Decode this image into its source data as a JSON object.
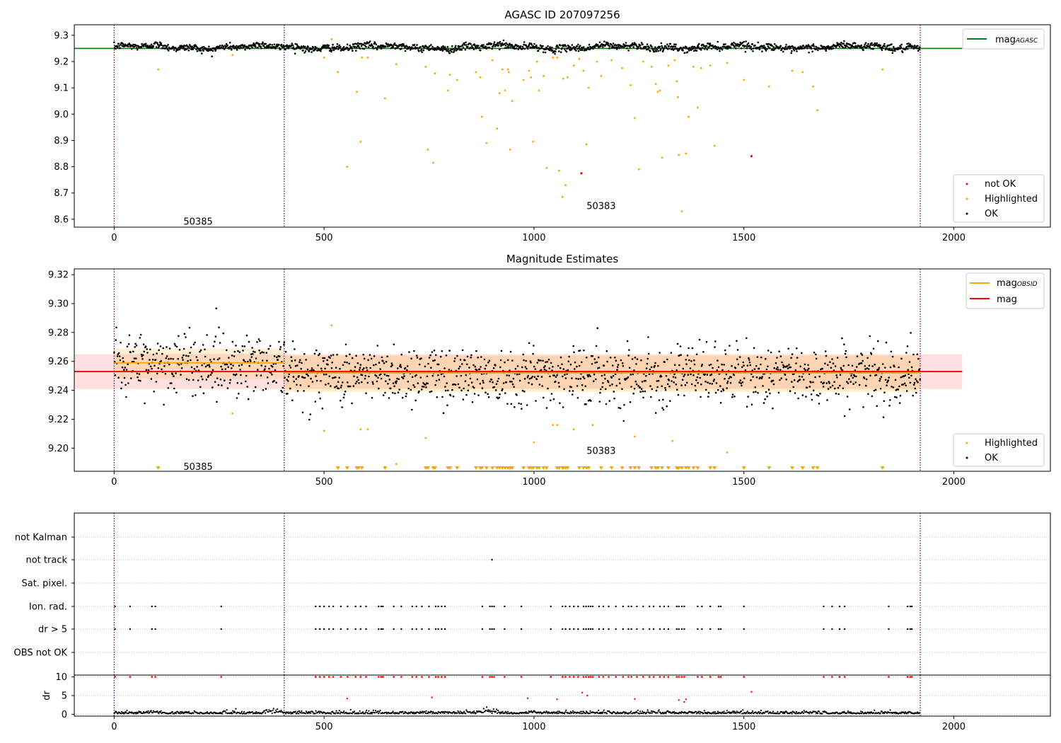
{
  "colors": {
    "ok": "#000000",
    "highlighted": "#ffa500",
    "not_ok": "#ff0000",
    "agasc": "#008000",
    "obsid": "#ffa500",
    "mag": "#ff0000",
    "obs_bound": "#800080"
  },
  "chart_data": [
    {
      "type": "scatter",
      "title": "AGASC ID 207097256",
      "xlim": [
        -95,
        2230
      ],
      "ylim": [
        8.57,
        9.34
      ],
      "xticks": [
        0,
        500,
        1000,
        1500,
        2000
      ],
      "yticks": [
        8.6,
        8.7,
        8.8,
        8.9,
        9.0,
        9.1,
        9.2,
        9.3
      ],
      "obs_boundaries": [
        0,
        405,
        1920
      ],
      "obsid_labels": [
        {
          "text": "50385",
          "x": 200,
          "y": 8.59
        },
        {
          "text": "50383",
          "x": 1160,
          "y": 8.65
        }
      ],
      "reference_lines": [
        {
          "name": "mag_AGASC",
          "label_main": "mag",
          "label_sub": "AGASC",
          "y": 9.25,
          "x_range": [
            -95,
            2020
          ],
          "color": "#008000"
        }
      ],
      "ok_band": {
        "center": 9.255,
        "spread": 0.012,
        "x_range": [
          0,
          1920
        ]
      },
      "highlighted_points": [
        [
          105,
          9.17
        ],
        [
          282,
          9.225
        ],
        [
          500,
          9.215
        ],
        [
          518,
          9.285
        ],
        [
          533,
          9.16
        ],
        [
          555,
          8.8
        ],
        [
          578,
          9.085
        ],
        [
          587,
          8.895
        ],
        [
          590,
          9.215
        ],
        [
          604,
          9.215
        ],
        [
          645,
          9.06
        ],
        [
          672,
          9.19
        ],
        [
          742,
          9.18
        ],
        [
          747,
          8.865
        ],
        [
          760,
          8.815
        ],
        [
          764,
          9.155
        ],
        [
          795,
          9.09
        ],
        [
          800,
          9.15
        ],
        [
          817,
          9.13
        ],
        [
          862,
          9.16
        ],
        [
          872,
          9.14
        ],
        [
          876,
          8.99
        ],
        [
          887,
          8.89
        ],
        [
          901,
          9.205
        ],
        [
          912,
          8.945
        ],
        [
          918,
          9.08
        ],
        [
          925,
          9.17
        ],
        [
          931,
          9.09
        ],
        [
          938,
          9.17
        ],
        [
          940,
          9.16
        ],
        [
          943,
          8.865
        ],
        [
          948,
          9.05
        ],
        [
          975,
          9.13
        ],
        [
          988,
          9.165
        ],
        [
          993,
          9.14
        ],
        [
          998,
          8.895
        ],
        [
          1007,
          9.2
        ],
        [
          1012,
          9.09
        ],
        [
          1023,
          9.145
        ],
        [
          1030,
          8.795
        ],
        [
          1045,
          9.215
        ],
        [
          1055,
          9.215
        ],
        [
          1060,
          8.785
        ],
        [
          1068,
          8.685
        ],
        [
          1070,
          9.135
        ],
        [
          1075,
          8.73
        ],
        [
          1080,
          9.14
        ],
        [
          1095,
          9.185
        ],
        [
          1108,
          9.21
        ],
        [
          1118,
          9.165
        ],
        [
          1125,
          8.885
        ],
        [
          1130,
          9.1
        ],
        [
          1150,
          9.2
        ],
        [
          1160,
          9.145
        ],
        [
          1185,
          9.205
        ],
        [
          1210,
          9.175
        ],
        [
          1230,
          9.11
        ],
        [
          1240,
          8.985
        ],
        [
          1250,
          8.79
        ],
        [
          1260,
          9.2
        ],
        [
          1280,
          9.18
        ],
        [
          1290,
          9.115
        ],
        [
          1295,
          9.085
        ],
        [
          1300,
          9.09
        ],
        [
          1305,
          8.835
        ],
        [
          1320,
          9.185
        ],
        [
          1335,
          9.205
        ],
        [
          1340,
          9.125
        ],
        [
          1343,
          9.065
        ],
        [
          1345,
          8.845
        ],
        [
          1352,
          8.63
        ],
        [
          1362,
          8.85
        ],
        [
          1368,
          8.99
        ],
        [
          1380,
          9.18
        ],
        [
          1390,
          9.025
        ],
        [
          1398,
          9.175
        ],
        [
          1420,
          9.185
        ],
        [
          1430,
          8.88
        ],
        [
          1460,
          9.195
        ],
        [
          1500,
          9.13
        ],
        [
          1560,
          9.105
        ],
        [
          1615,
          9.165
        ],
        [
          1640,
          9.16
        ],
        [
          1665,
          9.105
        ],
        [
          1675,
          9.015
        ],
        [
          1830,
          9.17
        ]
      ],
      "not_ok_points": [
        [
          1113,
          8.775
        ],
        [
          1518,
          8.84
        ]
      ],
      "legends": [
        {
          "entries": [
            {
              "label": "mag",
              "sub": "AGASC",
              "kind": "line",
              "color": "#008000"
            }
          ]
        },
        {
          "entries": [
            {
              "label": "not OK",
              "kind": "point",
              "color": "#ff0000"
            },
            {
              "label": "Highlighted",
              "kind": "point",
              "color": "#ffa500"
            },
            {
              "label": "OK",
              "kind": "point",
              "color": "#000000"
            }
          ]
        }
      ]
    },
    {
      "type": "scatter",
      "title": "Magnitude Estimates",
      "xlim": [
        -95,
        2230
      ],
      "ylim": [
        9.184,
        9.324
      ],
      "xticks": [
        0,
        500,
        1000,
        1500,
        2000
      ],
      "yticks": [
        9.2,
        9.22,
        9.24,
        9.26,
        9.28,
        9.3,
        9.32
      ],
      "obs_boundaries": [
        0,
        405,
        1920
      ],
      "obsid_labels": [
        {
          "text": "50385",
          "x": 200,
          "y": 9.187
        },
        {
          "text": "50383",
          "x": 1160,
          "y": 9.198
        }
      ],
      "bands": [
        {
          "x_range": [
            -95,
            2020
          ],
          "y_range": [
            9.241,
            9.265
          ],
          "color": "#ff0000",
          "opacity": 0.12
        },
        {
          "x_range": [
            0,
            405
          ],
          "y_range": [
            9.248,
            9.269
          ],
          "color": "#ffa500",
          "opacity": 0.16
        },
        {
          "x_range": [
            405,
            1920
          ],
          "y_range": [
            9.239,
            9.264
          ],
          "color": "#ffa500",
          "opacity": 0.2
        }
      ],
      "reference_lines": [
        {
          "name": "mag_OBSID_50385",
          "y": 9.259,
          "x_range": [
            0,
            405
          ],
          "color": "#ffa500"
        },
        {
          "name": "mag_OBSID_50383",
          "y": 9.252,
          "x_range": [
            405,
            1920
          ],
          "color": "#ffa500"
        },
        {
          "name": "mag",
          "y": 9.253,
          "x_range": [
            -95,
            2020
          ],
          "color": "#ff0000"
        }
      ],
      "ok_segments": [
        {
          "x_range": [
            0,
            405
          ],
          "center": 9.259,
          "spread": 0.011
        },
        {
          "x_range": [
            405,
            1920
          ],
          "center": 9.251,
          "spread": 0.01
        }
      ],
      "highlighted_points": [
        [
          282,
          9.224
        ],
        [
          500,
          9.212
        ],
        [
          518,
          9.285
        ],
        [
          587,
          9.213
        ],
        [
          604,
          9.213
        ],
        [
          672,
          9.189
        ],
        [
          742,
          9.207
        ],
        [
          1000,
          9.204
        ],
        [
          1045,
          9.216
        ],
        [
          1055,
          9.216
        ],
        [
          1095,
          9.213
        ],
        [
          1140,
          9.216
        ],
        [
          1240,
          9.208
        ],
        [
          1330,
          9.205
        ],
        [
          1460,
          9.197
        ]
      ],
      "below_markers": [
        105,
        533,
        555,
        578,
        582,
        590,
        645,
        742,
        747,
        760,
        764,
        795,
        800,
        817,
        862,
        872,
        876,
        887,
        901,
        912,
        918,
        925,
        931,
        938,
        943,
        948,
        975,
        988,
        993,
        998,
        1007,
        1012,
        1023,
        1030,
        1055,
        1060,
        1068,
        1070,
        1075,
        1080,
        1108,
        1118,
        1125,
        1130,
        1160,
        1185,
        1210,
        1230,
        1240,
        1250,
        1280,
        1290,
        1295,
        1305,
        1320,
        1340,
        1343,
        1345,
        1352,
        1362,
        1368,
        1380,
        1390,
        1420,
        1430,
        1500,
        1560,
        1615,
        1640,
        1665,
        1675,
        1830
      ],
      "legends": [
        {
          "entries": [
            {
              "label": "mag",
              "sub": "OBSID",
              "kind": "line",
              "color": "#ffa500"
            },
            {
              "label": "mag",
              "kind": "line",
              "color": "#ff0000"
            }
          ]
        },
        {
          "entries": [
            {
              "label": "Highlighted",
              "kind": "point",
              "color": "#ffa500"
            },
            {
              "label": "OK",
              "kind": "point",
              "color": "#000000"
            }
          ]
        }
      ]
    },
    {
      "type": "scatter",
      "title": "",
      "xlim": [
        -95,
        2230
      ],
      "row_labels": [
        "not Kalman",
        "not track",
        "Sat. pixel.",
        "Ion. rad.",
        "dr > 5",
        "OBS not OK"
      ],
      "obs_boundaries": [
        0,
        405,
        1920
      ],
      "flags": {
        "not Kalman": [],
        "not track": [
          900
        ],
        "Sat. pixel.": [],
        "Ion. rad.": [
          2,
          38,
          90,
          98,
          255,
          480,
          490,
          500,
          512,
          522,
          540,
          556,
          575,
          587,
          600,
          630,
          636,
          640,
          666,
          684,
          710,
          720,
          733,
          750,
          766,
          772,
          780,
          788,
          877,
          895,
          900,
          905,
          930,
          970,
          1040,
          1068,
          1075,
          1085,
          1095,
          1105,
          1118,
          1124,
          1130,
          1135,
          1140,
          1155,
          1165,
          1178,
          1195,
          1212,
          1225,
          1232,
          1245,
          1260,
          1275,
          1285,
          1300,
          1310,
          1320,
          1340,
          1345,
          1352,
          1358,
          1390,
          1400,
          1420,
          1440,
          1445,
          1500,
          1690,
          1710,
          1728,
          1740,
          1845,
          1890,
          1896,
          1900
        ],
        "dr > 5": [
          2,
          38,
          90,
          98,
          255,
          480,
          490,
          500,
          512,
          522,
          540,
          556,
          575,
          587,
          600,
          630,
          636,
          640,
          666,
          684,
          710,
          720,
          733,
          750,
          766,
          772,
          780,
          788,
          877,
          895,
          900,
          905,
          930,
          970,
          1040,
          1068,
          1075,
          1085,
          1095,
          1105,
          1118,
          1124,
          1130,
          1135,
          1140,
          1155,
          1165,
          1178,
          1195,
          1212,
          1225,
          1232,
          1245,
          1260,
          1275,
          1285,
          1300,
          1310,
          1320,
          1340,
          1345,
          1352,
          1358,
          1390,
          1400,
          1420,
          1440,
          1445,
          1500,
          1690,
          1710,
          1728,
          1740,
          1845,
          1890,
          1896,
          1900
        ],
        "OBS not OK": []
      }
    },
    {
      "type": "scatter",
      "title": "",
      "xlabel": "",
      "ylabel": "dr",
      "xlim": [
        -95,
        2230
      ],
      "ylim": [
        -0.5,
        10.5
      ],
      "xticks": [
        0,
        500,
        1000,
        1500,
        2000
      ],
      "yticks": [
        0,
        5,
        10
      ],
      "obs_boundaries": [
        0,
        405,
        1920
      ],
      "clipped_at": 10,
      "clipped_x": [
        2,
        38,
        90,
        98,
        255,
        480,
        490,
        500,
        512,
        522,
        540,
        556,
        575,
        587,
        600,
        630,
        636,
        640,
        666,
        684,
        710,
        720,
        733,
        750,
        766,
        772,
        780,
        788,
        877,
        895,
        900,
        905,
        930,
        970,
        1040,
        1068,
        1075,
        1085,
        1095,
        1105,
        1118,
        1124,
        1130,
        1135,
        1140,
        1155,
        1165,
        1178,
        1195,
        1212,
        1225,
        1232,
        1245,
        1260,
        1275,
        1285,
        1300,
        1310,
        1320,
        1340,
        1345,
        1352,
        1358,
        1390,
        1400,
        1420,
        1440,
        1445,
        1500,
        1690,
        1710,
        1728,
        1740,
        1845,
        1890,
        1896,
        1900
      ],
      "red_points": [
        [
          555,
          4.2
        ],
        [
          757,
          4.5
        ],
        [
          985,
          4.3
        ],
        [
          1055,
          4.0
        ],
        [
          1115,
          5.8
        ],
        [
          1127,
          5.0
        ],
        [
          1240,
          4.1
        ],
        [
          1345,
          3.8
        ],
        [
          1358,
          3.3
        ],
        [
          1362,
          4.0
        ],
        [
          1518,
          6.0
        ]
      ],
      "ok_baseline": {
        "max": 0.9,
        "bumps": [
          [
            92,
            1.2
          ],
          [
            380,
            1.6
          ],
          [
            890,
            1.8
          ],
          [
            1000,
            1.0
          ]
        ]
      }
    }
  ]
}
